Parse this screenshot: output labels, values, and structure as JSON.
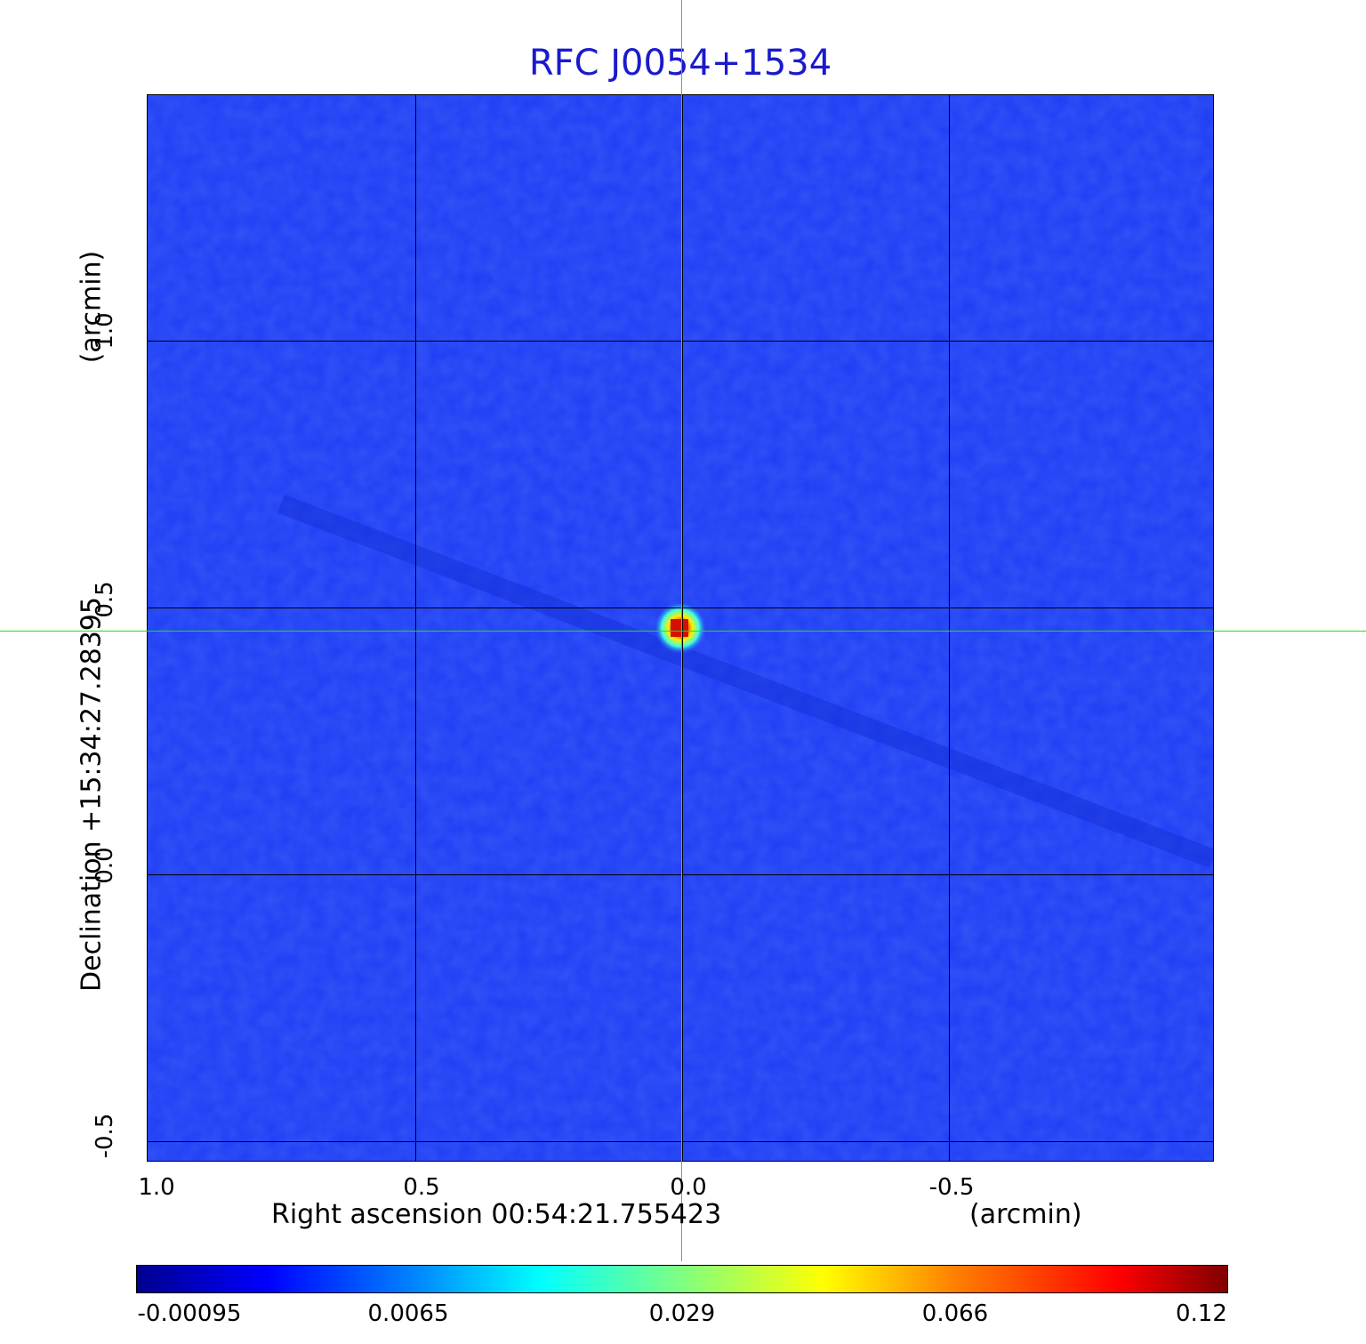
{
  "title": "RFC J0054+1534",
  "x_axis": {
    "label": "Right ascension  00:54:21.755423",
    "unit": "(arcmin)",
    "ticks": [
      "1.0",
      "0.5",
      "0.0",
      "-0.5"
    ]
  },
  "y_axis": {
    "label": "Declination  +15:34:27.28395",
    "unit": "(arcmin)",
    "ticks": [
      "1.0",
      "0.5",
      "0.0",
      "-0.5"
    ]
  },
  "colorbar": {
    "ticks": [
      "-0.00095",
      "0.0065",
      "0.029",
      "0.066",
      "0.12"
    ],
    "colormap": "jet"
  },
  "colors": {
    "title": "#1a1acc",
    "background_field": "#1e3cf5",
    "crosshair": "#22dd22"
  }
}
